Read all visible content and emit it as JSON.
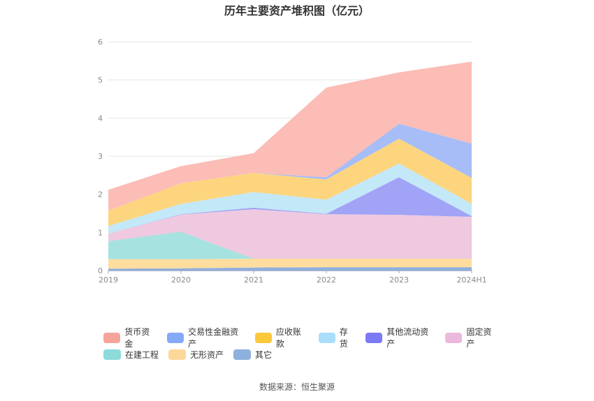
{
  "title": "历年主要资产堆积图（亿元）",
  "source": "数据来源：恒生聚源",
  "chart_data": {
    "type": "area",
    "stacked": true,
    "categories": [
      "2019",
      "2020",
      "2021",
      "2022",
      "2023",
      "2024H1"
    ],
    "ylim": [
      0,
      6
    ],
    "yticks": [
      0,
      1,
      2,
      3,
      4,
      5,
      6
    ],
    "grid": true,
    "legend_position": "bottom",
    "series": [
      {
        "name": "其它",
        "color": "#8fb0dd",
        "values": [
          0.05,
          0.06,
          0.08,
          0.09,
          0.09,
          0.09
        ]
      },
      {
        "name": "无形资产",
        "color": "#fedd9f",
        "values": [
          0.25,
          0.24,
          0.23,
          0.22,
          0.22,
          0.22
        ]
      },
      {
        "name": "在建工程",
        "color": "#a6e2e0",
        "values": [
          0.47,
          0.72,
          0.0,
          0.0,
          0.0,
          0.0
        ]
      },
      {
        "name": "固定资产",
        "color": "#eec9e0",
        "values": [
          0.2,
          0.45,
          1.3,
          1.17,
          1.15,
          1.1
        ]
      },
      {
        "name": "其他流动资产",
        "color": "#a0a3f6",
        "values": [
          0.0,
          0.01,
          0.04,
          0.01,
          0.99,
          0.02
        ]
      },
      {
        "name": "存货",
        "color": "#c3e8f8",
        "values": [
          0.2,
          0.27,
          0.41,
          0.37,
          0.36,
          0.32
        ]
      },
      {
        "name": "应收账款",
        "color": "#fdd57e",
        "values": [
          0.4,
          0.54,
          0.5,
          0.53,
          0.65,
          0.68
        ]
      },
      {
        "name": "交易性金融资产",
        "color": "#a6bdf7",
        "values": [
          0.0,
          0.0,
          0.0,
          0.06,
          0.39,
          0.9
        ]
      },
      {
        "name": "货币资金",
        "color": "#fbbdb6",
        "values": [
          0.55,
          0.45,
          0.52,
          2.35,
          1.35,
          2.15
        ]
      }
    ],
    "legend": [
      {
        "name": "货币资金",
        "color": "#f6a49a"
      },
      {
        "name": "交易性金融资产",
        "color": "#84a9f8"
      },
      {
        "name": "应收账款",
        "color": "#fcc83c"
      },
      {
        "name": "存货",
        "color": "#a8defa"
      },
      {
        "name": "其他流动资产",
        "color": "#7b7af4"
      },
      {
        "name": "固定资产",
        "color": "#ebb9dc"
      },
      {
        "name": "在建工程",
        "color": "#8cdada"
      },
      {
        "name": "无形资产",
        "color": "#fdd89b"
      },
      {
        "name": "其它",
        "color": "#8eb0dc"
      }
    ]
  }
}
